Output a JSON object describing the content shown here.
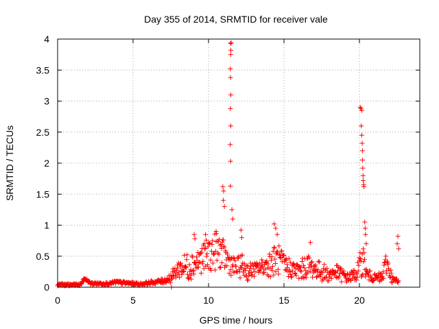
{
  "chart_data": {
    "type": "scatter",
    "title": "Day 355 of 2014, SRMTID for receiver vale",
    "xlabel": "GPS time / hours",
    "ylabel": "SRMTID / TECUs",
    "xlim": [
      0,
      24
    ],
    "ylim": [
      0,
      4
    ],
    "grid": true,
    "marker": "+",
    "color": "#ff0000",
    "x_ticks": [
      "0",
      "5",
      "10",
      "15",
      "20"
    ],
    "x_tick_values": [
      0,
      5,
      10,
      15,
      20
    ],
    "y_ticks": [
      "0",
      "0.5",
      "1",
      "1.5",
      "2",
      "2.5",
      "3",
      "3.5",
      "4"
    ],
    "y_tick_values": [
      0,
      0.5,
      1,
      1.5,
      2,
      2.5,
      3,
      3.5,
      4
    ],
    "base_series": {
      "x": [
        0,
        1.5,
        1.8,
        2.2,
        3.5,
        3.8,
        5.5,
        7.0,
        7.5,
        8.0,
        8.7,
        9.2,
        9.8,
        10.2,
        10.7,
        11.0,
        11.4,
        11.8,
        12.2,
        12.6,
        13.2,
        13.8,
        14.2,
        14.6,
        15.0,
        15.5,
        16.0,
        16.5,
        17.0,
        17.5,
        18.0,
        18.4,
        18.8,
        19.2,
        19.7,
        20.0,
        20.2,
        20.5,
        21.0,
        21.5,
        21.8,
        22.2,
        22.6
      ],
      "y": [
        0.04,
        0.04,
        0.14,
        0.06,
        0.06,
        0.08,
        0.05,
        0.1,
        0.15,
        0.3,
        0.35,
        0.4,
        0.5,
        0.55,
        0.6,
        0.5,
        0.4,
        0.3,
        0.35,
        0.25,
        0.3,
        0.35,
        0.4,
        0.45,
        0.35,
        0.3,
        0.25,
        0.35,
        0.3,
        0.25,
        0.2,
        0.25,
        0.2,
        0.15,
        0.2,
        0.3,
        0.5,
        0.2,
        0.15,
        0.15,
        0.4,
        0.12,
        0.08
      ],
      "spread": [
        0.02,
        0.02,
        0.02,
        0.02,
        0.02,
        0.03,
        0.02,
        0.04,
        0.08,
        0.15,
        0.25,
        0.2,
        0.25,
        0.3,
        0.3,
        0.25,
        0.2,
        0.15,
        0.2,
        0.15,
        0.1,
        0.15,
        0.25,
        0.25,
        0.2,
        0.15,
        0.15,
        0.2,
        0.15,
        0.15,
        0.12,
        0.12,
        0.12,
        0.08,
        0.1,
        0.2,
        0.3,
        0.1,
        0.06,
        0.1,
        0.2,
        0.06,
        0.05
      ]
    },
    "spike_series": [
      {
        "x": 10.95,
        "y": 1.62
      },
      {
        "x": 11.0,
        "y": 1.55
      },
      {
        "x": 10.98,
        "y": 1.4
      },
      {
        "x": 11.05,
        "y": 1.3
      },
      {
        "x": 11.45,
        "y": 1.63
      },
      {
        "x": 11.46,
        "y": 2.03
      },
      {
        "x": 11.44,
        "y": 2.3
      },
      {
        "x": 11.47,
        "y": 2.6
      },
      {
        "x": 11.45,
        "y": 2.88
      },
      {
        "x": 11.48,
        "y": 3.1
      },
      {
        "x": 11.46,
        "y": 3.38
      },
      {
        "x": 11.45,
        "y": 3.52
      },
      {
        "x": 11.47,
        "y": 3.75
      },
      {
        "x": 11.48,
        "y": 3.82
      },
      {
        "x": 11.46,
        "y": 3.93
      },
      {
        "x": 11.5,
        "y": 3.94
      },
      {
        "x": 11.55,
        "y": 1.25
      },
      {
        "x": 11.6,
        "y": 1.1
      },
      {
        "x": 14.35,
        "y": 1.02
      },
      {
        "x": 14.45,
        "y": 0.95
      },
      {
        "x": 14.55,
        "y": 0.85
      },
      {
        "x": 20.05,
        "y": 2.9
      },
      {
        "x": 20.1,
        "y": 2.88
      },
      {
        "x": 20.15,
        "y": 2.85
      },
      {
        "x": 20.12,
        "y": 2.6
      },
      {
        "x": 20.15,
        "y": 2.45
      },
      {
        "x": 20.18,
        "y": 2.32
      },
      {
        "x": 20.2,
        "y": 2.2
      },
      {
        "x": 20.2,
        "y": 2.05
      },
      {
        "x": 20.22,
        "y": 1.92
      },
      {
        "x": 20.24,
        "y": 1.8
      },
      {
        "x": 20.25,
        "y": 1.72
      },
      {
        "x": 20.28,
        "y": 1.65
      },
      {
        "x": 20.3,
        "y": 1.62
      },
      {
        "x": 20.35,
        "y": 1.05
      },
      {
        "x": 20.38,
        "y": 0.95
      },
      {
        "x": 20.4,
        "y": 0.85
      },
      {
        "x": 20.45,
        "y": 0.7
      },
      {
        "x": 22.55,
        "y": 0.82
      },
      {
        "x": 22.5,
        "y": 0.7
      },
      {
        "x": 22.6,
        "y": 0.62
      },
      {
        "x": 9.05,
        "y": 0.85
      },
      {
        "x": 9.1,
        "y": 0.78
      },
      {
        "x": 9.8,
        "y": 0.85
      },
      {
        "x": 10.5,
        "y": 0.9
      },
      {
        "x": 12.15,
        "y": 0.92
      },
      {
        "x": 12.2,
        "y": 0.8
      },
      {
        "x": 16.75,
        "y": 0.72
      },
      {
        "x": 7.55,
        "y": 0.0
      }
    ]
  }
}
